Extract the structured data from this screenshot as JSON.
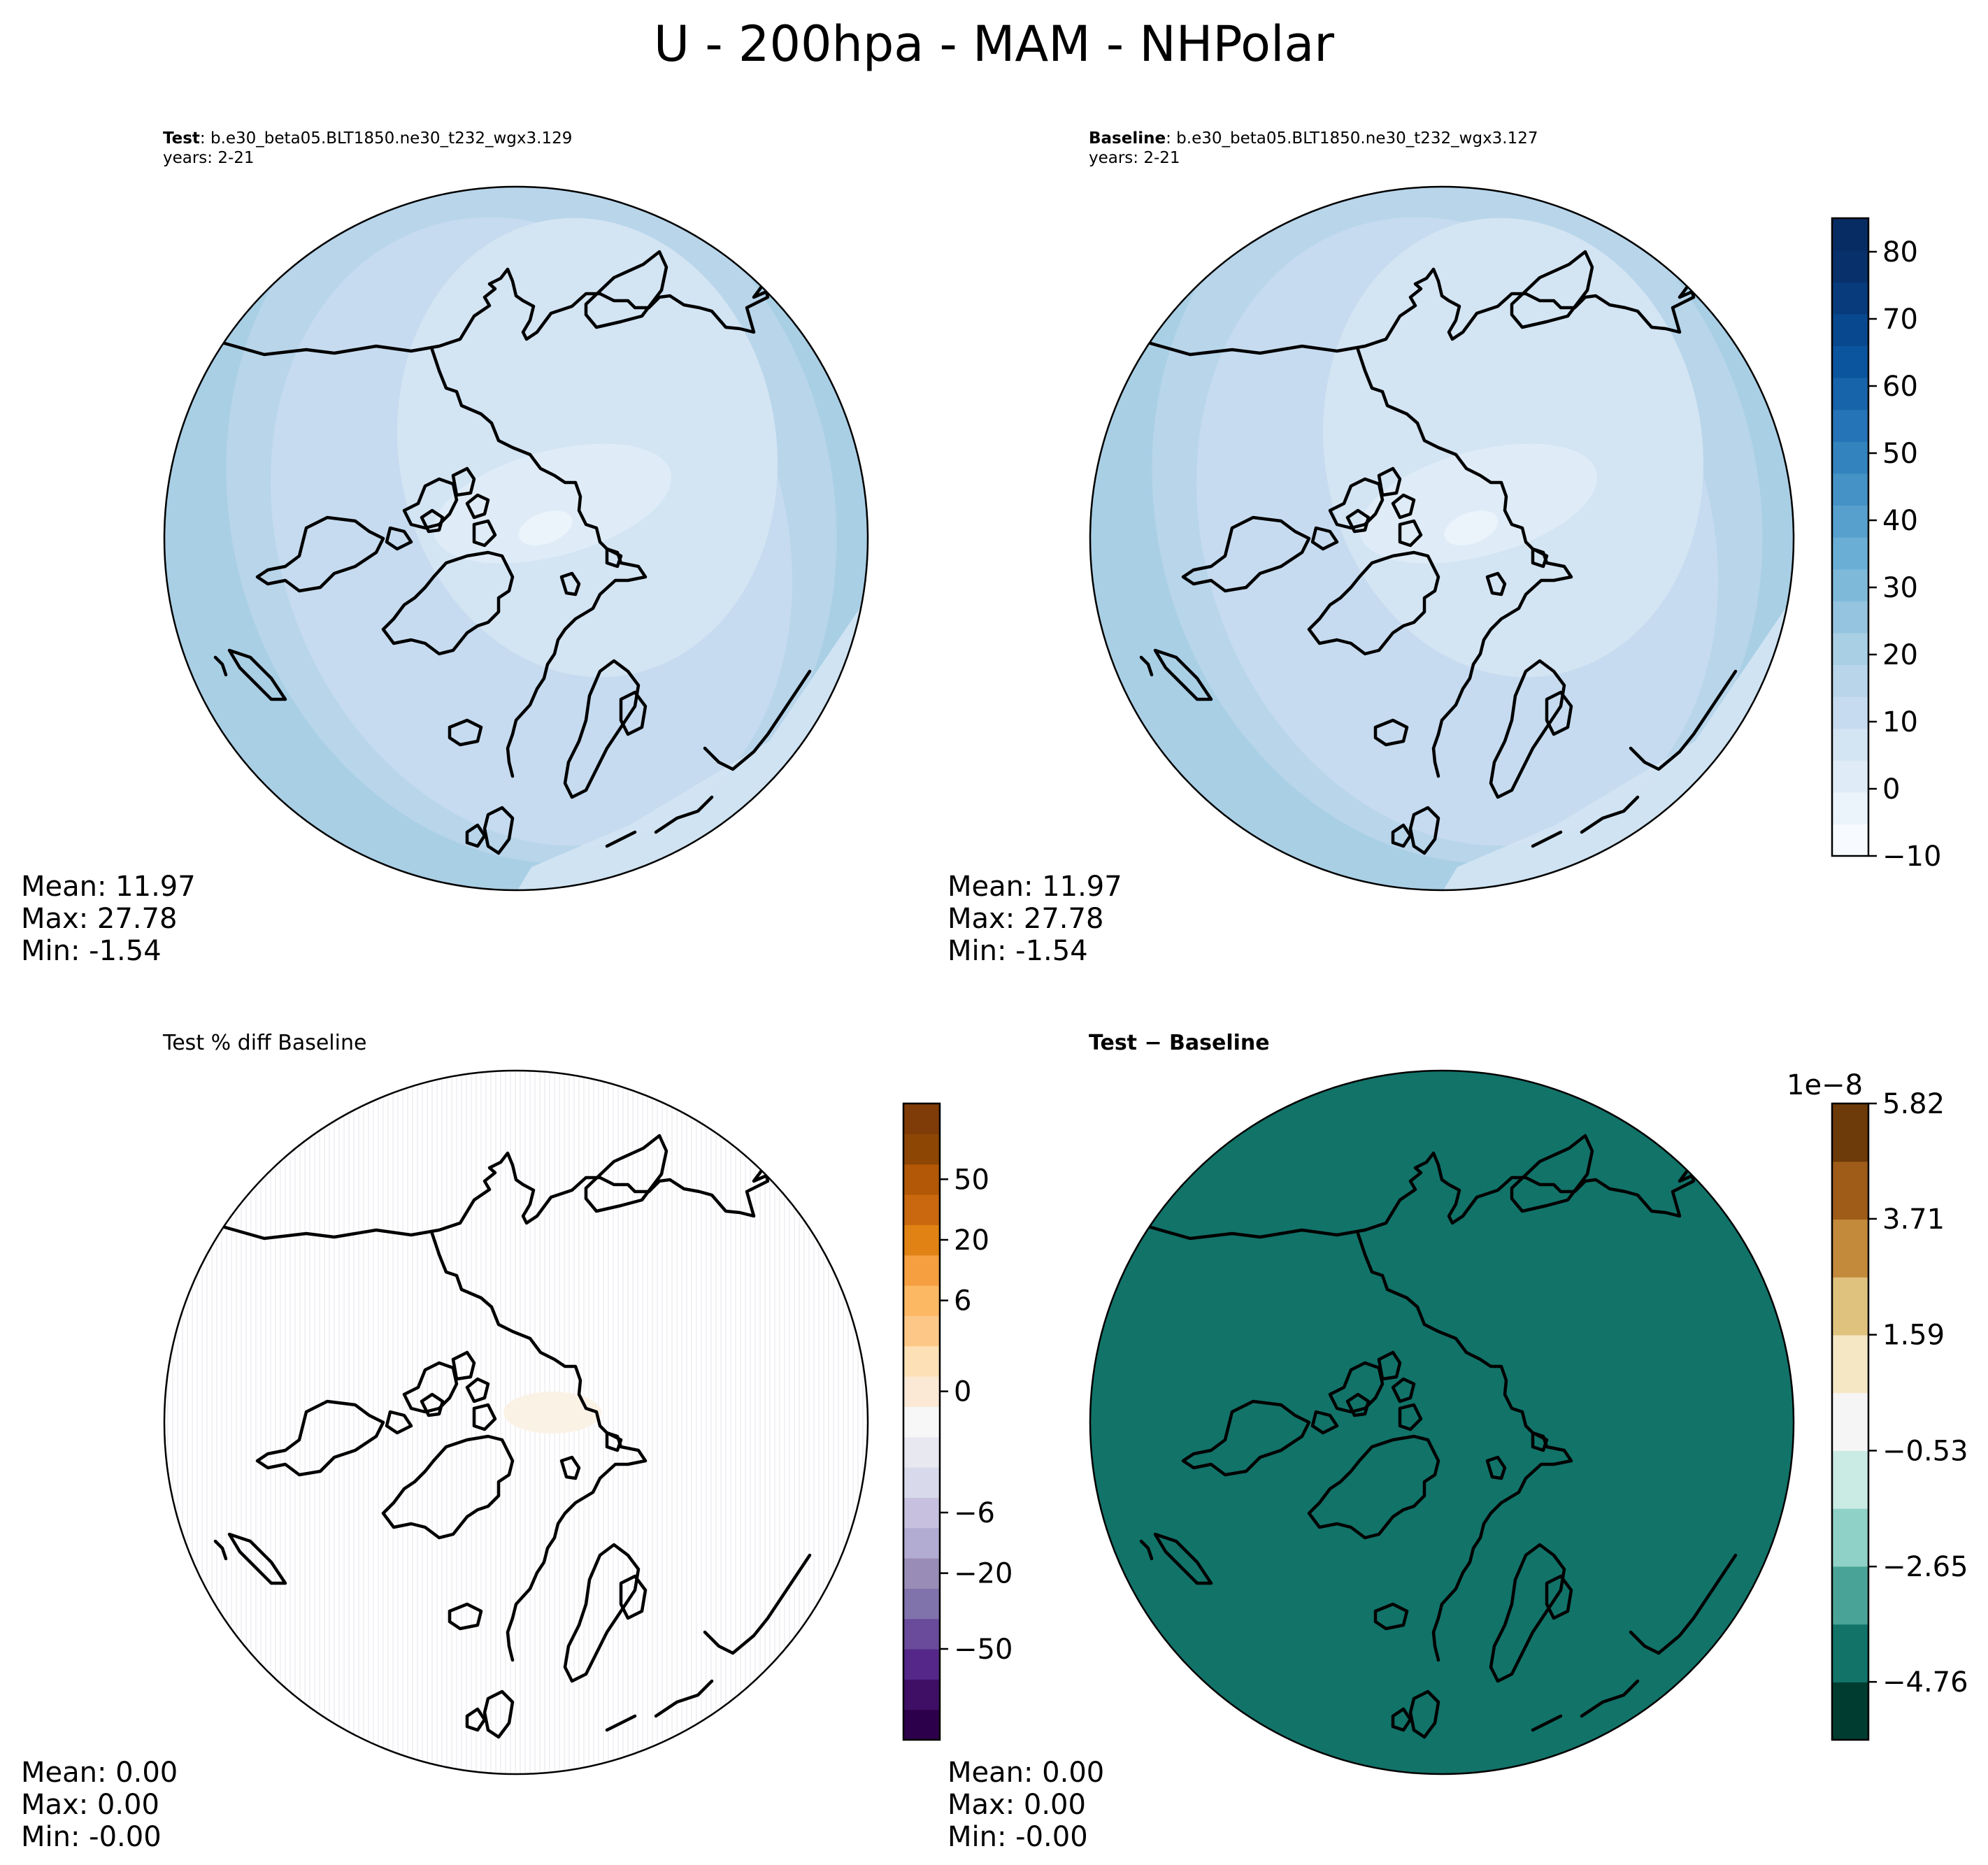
{
  "suptitle": "U - 200hpa - MAM - NHPolar",
  "panels": [
    {
      "id": "test",
      "title_bold": "Test",
      "title_rest": ": b.e30_beta05.BLT1850.ne30_t232_wgx3.129",
      "subtitle": "years: 2-21",
      "stats": [
        "Mean: 11.97",
        "Max: 27.78",
        "Min: -1.54"
      ]
    },
    {
      "id": "baseline",
      "title_bold": "Baseline",
      "title_rest": ": b.e30_beta05.BLT1850.ne30_t232_wgx3.127",
      "subtitle": "years: 2-21",
      "stats": [
        "Mean: 11.97",
        "Max: 27.78",
        "Min: -1.54"
      ]
    },
    {
      "id": "pctdiff",
      "title": "Test % diff Baseline",
      "stats": [
        "Mean:  0.00",
        "Max:  0.00",
        "Min: -0.00"
      ]
    },
    {
      "id": "diff",
      "title_bold": "Test − Baseline",
      "stats": [
        "Mean:  0.00",
        "Max:  0.00",
        "Min: -0.00"
      ]
    }
  ],
  "chart_data": [
    {
      "type": "heatmap",
      "projection": "north polar stereographic",
      "panel": "test",
      "field_colormap": "Blues",
      "range": [
        -10,
        85
      ],
      "colorbar": null,
      "stats": {
        "mean": 11.97,
        "max": 27.78,
        "min": -1.54
      }
    },
    {
      "type": "heatmap",
      "projection": "north polar stereographic",
      "panel": "baseline",
      "field_colormap": "Blues",
      "colorbar": {
        "ticks": [
          "80",
          "70",
          "60",
          "50",
          "40",
          "30",
          "20",
          "10",
          "0",
          "−10"
        ],
        "tick_values": [
          80,
          70,
          60,
          50,
          40,
          30,
          20,
          10,
          0,
          -10
        ],
        "range": [
          -10,
          85
        ],
        "levels": 20,
        "colors": [
          "#f7fbff",
          "#ebf3fb",
          "#dfecf7",
          "#d3e4f3",
          "#c6dbef",
          "#b8d5ea",
          "#a9cfe5",
          "#94c4df",
          "#7fb9da",
          "#6aaed6",
          "#57a0ce",
          "#4592c6",
          "#3383be",
          "#2474b7",
          "#1764ab",
          "#0b559f",
          "#08488e",
          "#083b7c",
          "#08306b",
          "#072c63"
        ]
      },
      "stats": {
        "mean": 11.97,
        "max": 27.78,
        "min": -1.54
      }
    },
    {
      "type": "heatmap",
      "projection": "north polar stereographic",
      "panel": "pctdiff",
      "field_colormap": "PuOr_r",
      "colorbar": {
        "ticks": [
          "50",
          "20",
          "6",
          "0",
          "−6",
          "−20",
          "−50"
        ],
        "tick_values": [
          50,
          20,
          6,
          0,
          -6,
          -20,
          -50
        ],
        "colors": [
          "#2d004b",
          "#3f0f66",
          "#542788",
          "#6a4a9a",
          "#8073ac",
          "#998db8",
          "#b2abd2",
          "#c7c1df",
          "#d8daeb",
          "#e8e8f0",
          "#f7f7f7",
          "#fbe9d5",
          "#fee0b6",
          "#fdc887",
          "#fdb863",
          "#f59f40",
          "#e08214",
          "#c9680f",
          "#b35806",
          "#8d4604",
          "#7f3b08"
        ]
      },
      "stats": {
        "mean": 0.0,
        "max": 0.0,
        "min": -0.0
      }
    },
    {
      "type": "heatmap",
      "projection": "north polar stereographic",
      "panel": "diff",
      "field_colormap": "BrBG",
      "colorbar": {
        "ticks": [
          "5.82",
          "3.71",
          "1.59",
          "−0.53",
          "−2.65",
          "−4.76"
        ],
        "tick_values": [
          5.82,
          3.71,
          1.59,
          -0.53,
          -2.65,
          -4.76
        ],
        "range": [
          -5.82,
          5.82
        ],
        "offset_label": "1e−8",
        "colors": [
          "#003c30",
          "#127369",
          "#4aa397",
          "#8fd1c6",
          "#c9ebe4",
          "#f5f5f5",
          "#f6e7c4",
          "#dfc27d",
          "#c38a3c",
          "#9e5c18",
          "#6d3a09"
        ]
      },
      "fill_color": "#127369",
      "stats": {
        "mean": 0.0,
        "max": 0.0,
        "min": -0.0
      }
    }
  ]
}
